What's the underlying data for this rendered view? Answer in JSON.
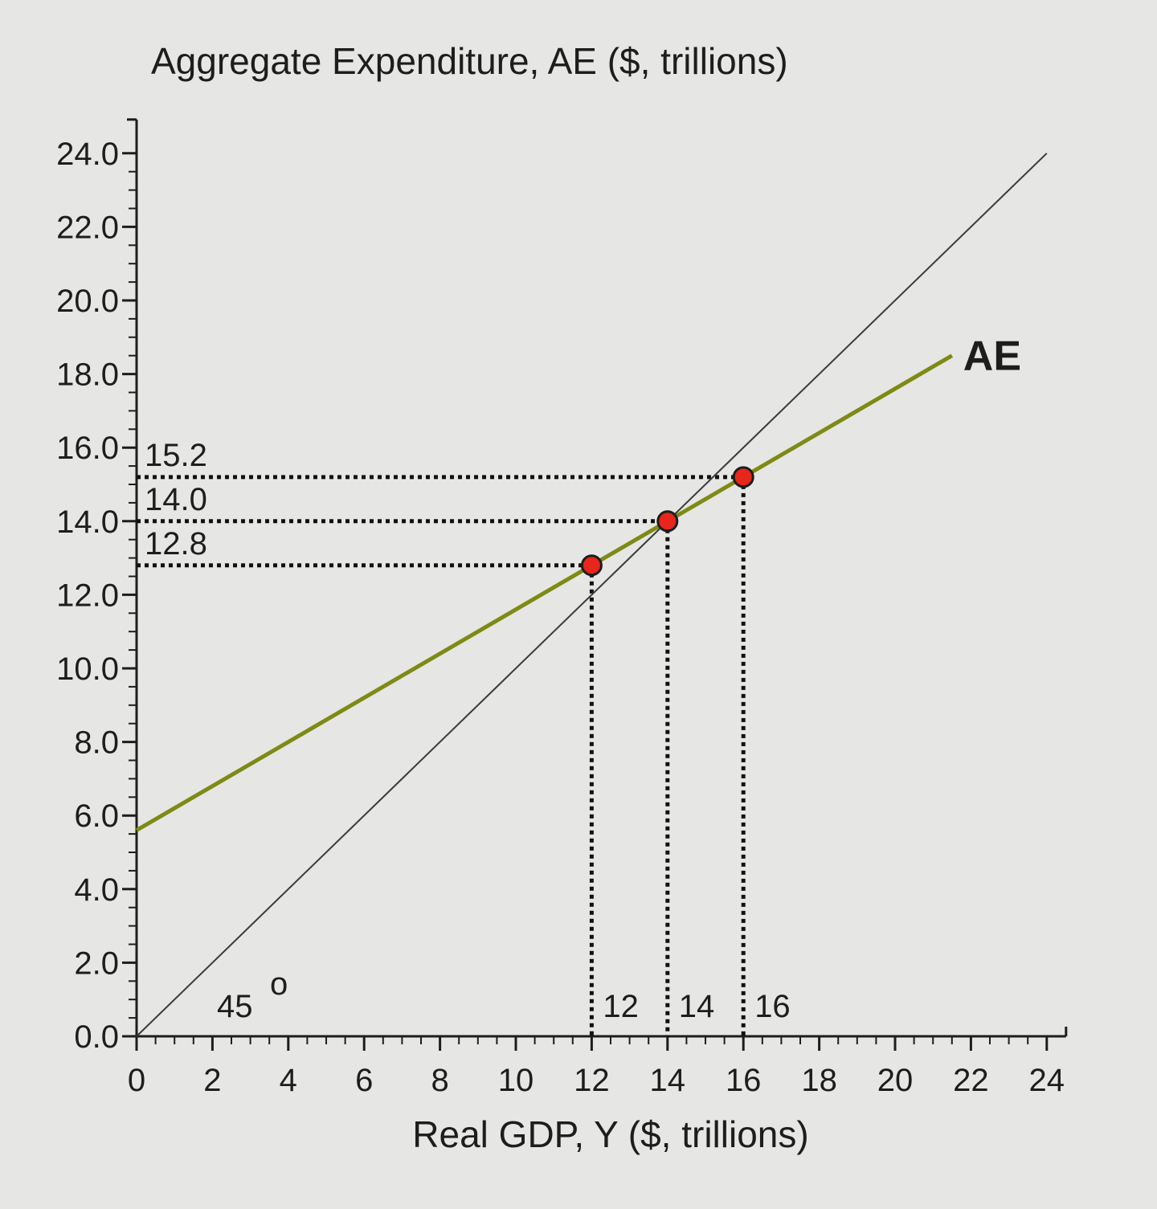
{
  "chart_data": {
    "type": "line",
    "ylabel": "Aggregate Expenditure, AE ($, trillions)",
    "xlabel": "Real GDP, Y ($, trillions)",
    "xlim": [
      0,
      24
    ],
    "ylim": [
      0,
      24
    ],
    "x_ticks": [
      "0",
      "2",
      "4",
      "6",
      "8",
      "10",
      "12",
      "14",
      "16",
      "18",
      "20",
      "22",
      "24"
    ],
    "y_ticks": [
      "0.0",
      "2.0",
      "4.0",
      "6.0",
      "8.0",
      "10.0",
      "12.0",
      "14.0",
      "16.0",
      "18.0",
      "20.0",
      "22.0",
      "24.0"
    ],
    "series": [
      {
        "name": "45°",
        "color": "#3a3a3a",
        "x": [
          0,
          24
        ],
        "y": [
          0,
          24
        ]
      },
      {
        "name": "AE",
        "color": "#7e8a14",
        "x": [
          0,
          21.5
        ],
        "y": [
          5.6,
          18.5
        ]
      }
    ],
    "points": [
      {
        "x": 12,
        "y": 12.8,
        "y_label": "12.8",
        "x_label": "12"
      },
      {
        "x": 14,
        "y": 14.0,
        "y_label": "14.0",
        "x_label": "14"
      },
      {
        "x": 16,
        "y": 15.2,
        "y_label": "15.2",
        "x_label": "16"
      }
    ],
    "point_color": "#e8261c",
    "angle_label": "45",
    "angle_mark": "o",
    "curve_label": "AE",
    "grid": false
  }
}
